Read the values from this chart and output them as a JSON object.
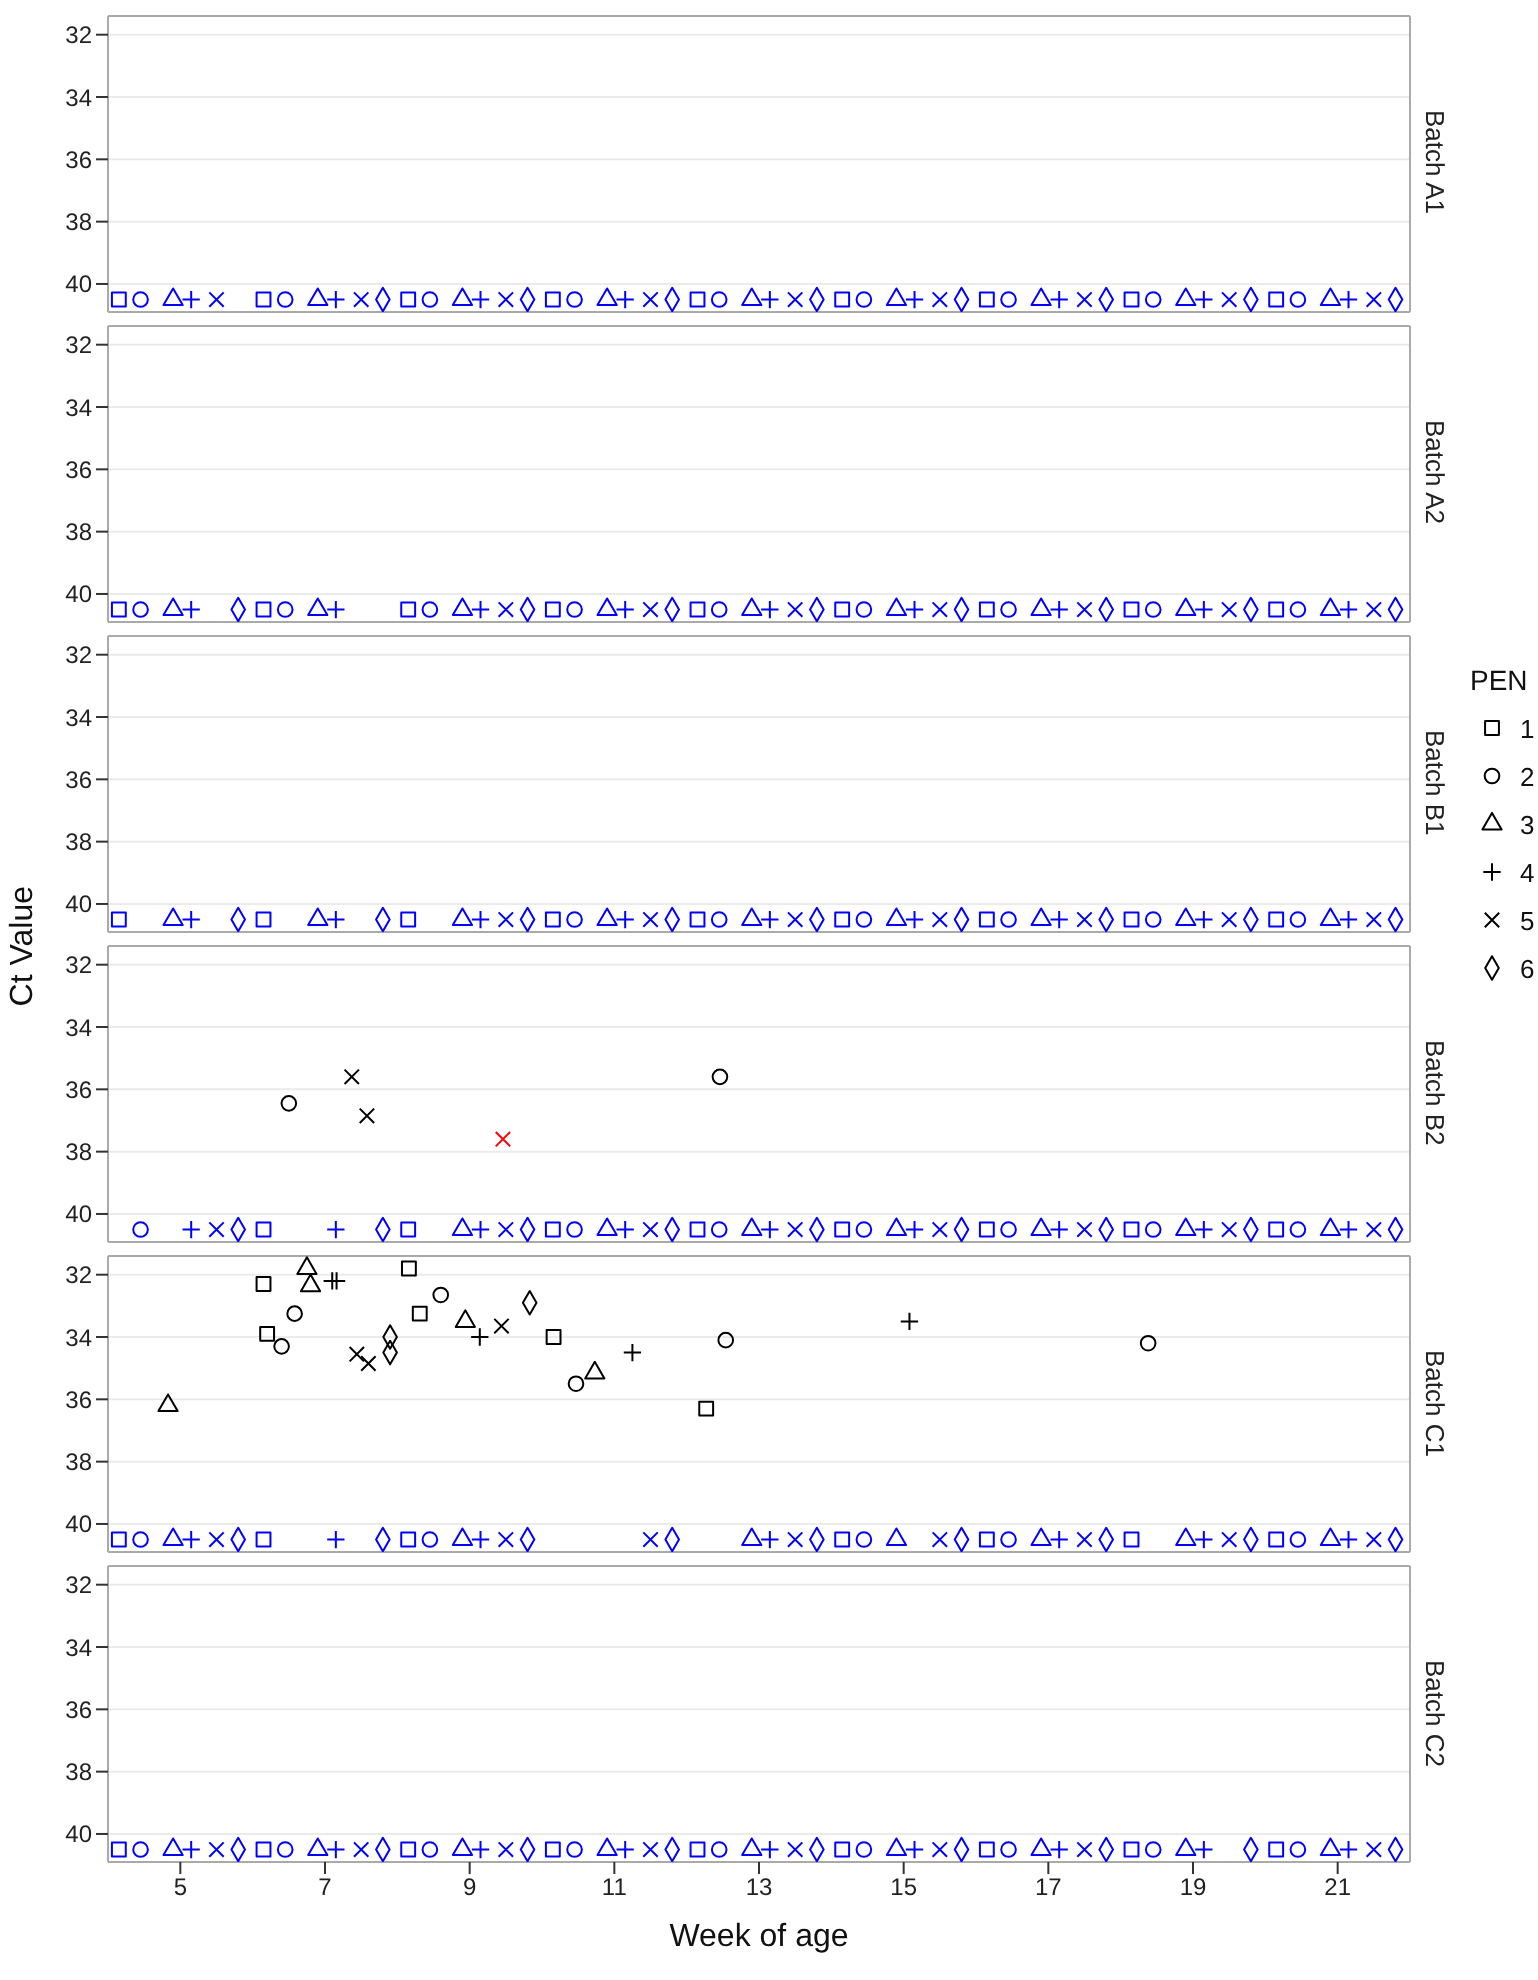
{
  "chart_data": [
    {
      "type": "scatter",
      "title": "Batch A1",
      "xlim": [
        4,
        22
      ],
      "xticks": [
        5,
        7,
        9,
        11,
        13,
        15,
        17,
        19,
        21
      ],
      "ylim": [
        40.9,
        31.4
      ],
      "yticks": [
        32,
        34,
        36,
        38,
        40
      ],
      "grid": "y",
      "tick_labels": "y",
      "series": [
        {
          "marker": "square",
          "color": "#0000ff",
          "x": [
            4.15,
            6.15,
            8.15,
            10.15,
            12.15,
            14.15,
            16.15,
            18.15,
            20.15
          ],
          "values": [
            40.5,
            40.5,
            40.5,
            40.5,
            40.5,
            40.5,
            40.5,
            40.5,
            40.5
          ]
        },
        {
          "marker": "circle",
          "color": "#0000ff",
          "x": [
            4.45,
            6.45,
            8.45,
            10.45,
            12.45,
            14.45,
            16.45,
            18.45,
            20.45
          ],
          "values": [
            40.5,
            40.5,
            40.5,
            40.5,
            40.5,
            40.5,
            40.5,
            40.5,
            40.5
          ]
        },
        {
          "marker": "triangle",
          "color": "#0000ff",
          "x": [
            4.9,
            6.9,
            8.9,
            10.9,
            12.9,
            14.9,
            16.9,
            18.9,
            20.9
          ],
          "values": [
            40.5,
            40.5,
            40.5,
            40.5,
            40.5,
            40.5,
            40.5,
            40.5,
            40.5
          ]
        },
        {
          "marker": "cross",
          "color": "#0000ff",
          "x": [
            5.15,
            7.15,
            9.15,
            11.15,
            13.15,
            15.15,
            17.15,
            19.15,
            21.15
          ],
          "values": [
            40.5,
            40.5,
            40.5,
            40.5,
            40.5,
            40.5,
            40.5,
            40.5,
            40.5
          ]
        },
        {
          "marker": "x",
          "color": "#0000ff",
          "x": [
            5.5,
            7.5,
            9.5,
            11.5,
            13.5,
            15.5,
            17.5,
            19.5,
            21.5
          ],
          "values": [
            40.5,
            40.5,
            40.5,
            40.5,
            40.5,
            40.5,
            40.5,
            40.5,
            40.5
          ]
        },
        {
          "marker": "diamond",
          "color": "#0000ff",
          "x": [
            7.8,
            9.8,
            11.8,
            13.8,
            15.8,
            17.8,
            19.8,
            21.8
          ],
          "values": [
            40.5,
            40.5,
            40.5,
            40.5,
            40.5,
            40.5,
            40.5,
            40.5
          ]
        }
      ]
    },
    {
      "type": "scatter",
      "title": "Batch A2",
      "xlim": [
        4,
        22
      ],
      "xticks": [
        5,
        7,
        9,
        11,
        13,
        15,
        17,
        19,
        21
      ],
      "ylim": [
        40.9,
        31.4
      ],
      "yticks": [
        32,
        34,
        36,
        38,
        40
      ],
      "grid": "y",
      "tick_labels": "y",
      "series": [
        {
          "marker": "square",
          "color": "#0000ff",
          "x": [
            4.15,
            6.15,
            8.15,
            10.15,
            12.15,
            14.15,
            16.15,
            18.15,
            20.15
          ],
          "values": [
            40.5,
            40.5,
            40.5,
            40.5,
            40.5,
            40.5,
            40.5,
            40.5,
            40.5
          ]
        },
        {
          "marker": "circle",
          "color": "#0000ff",
          "x": [
            4.45,
            6.45,
            8.45,
            10.45,
            12.45,
            14.45,
            16.45,
            18.45,
            20.45
          ],
          "values": [
            40.5,
            40.5,
            40.5,
            40.5,
            40.5,
            40.5,
            40.5,
            40.5,
            40.5
          ]
        },
        {
          "marker": "triangle",
          "color": "#0000ff",
          "x": [
            4.9,
            6.9,
            8.9,
            10.9,
            12.9,
            14.9,
            16.9,
            18.9,
            20.9
          ],
          "values": [
            40.5,
            40.5,
            40.5,
            40.5,
            40.5,
            40.5,
            40.5,
            40.5,
            40.5
          ]
        },
        {
          "marker": "cross",
          "color": "#0000ff",
          "x": [
            5.15,
            7.15,
            9.15,
            11.15,
            13.15,
            15.15,
            17.15,
            19.15,
            21.15
          ],
          "values": [
            40.5,
            40.5,
            40.5,
            40.5,
            40.5,
            40.5,
            40.5,
            40.5,
            40.5
          ]
        },
        {
          "marker": "x",
          "color": "#0000ff",
          "x": [
            9.5,
            11.5,
            13.5,
            15.5,
            17.5,
            19.5,
            21.5
          ],
          "values": [
            40.5,
            40.5,
            40.5,
            40.5,
            40.5,
            40.5,
            40.5
          ]
        },
        {
          "marker": "diamond",
          "color": "#0000ff",
          "x": [
            5.8,
            9.8,
            11.8,
            13.8,
            15.8,
            17.8,
            19.8,
            21.8
          ],
          "values": [
            40.5,
            40.5,
            40.5,
            40.5,
            40.5,
            40.5,
            40.5,
            40.5
          ]
        }
      ]
    },
    {
      "type": "scatter",
      "title": "Batch B1",
      "xlim": [
        4,
        22
      ],
      "xticks": [
        5,
        7,
        9,
        11,
        13,
        15,
        17,
        19,
        21
      ],
      "ylim": [
        40.9,
        31.4
      ],
      "yticks": [
        32,
        34,
        36,
        38,
        40
      ],
      "grid": "y",
      "tick_labels": "y",
      "series": [
        {
          "marker": "square",
          "color": "#0000ff",
          "x": [
            4.15,
            6.15,
            8.15,
            10.15,
            12.15,
            14.15,
            16.15,
            18.15,
            20.15
          ],
          "values": [
            40.5,
            40.5,
            40.5,
            40.5,
            40.5,
            40.5,
            40.5,
            40.5,
            40.5
          ]
        },
        {
          "marker": "circle",
          "color": "#0000ff",
          "x": [
            10.45,
            12.45,
            14.45,
            16.45,
            18.45,
            20.45
          ],
          "values": [
            40.5,
            40.5,
            40.5,
            40.5,
            40.5,
            40.5
          ]
        },
        {
          "marker": "triangle",
          "color": "#0000ff",
          "x": [
            4.9,
            6.9,
            8.9,
            10.9,
            12.9,
            14.9,
            16.9,
            18.9,
            20.9
          ],
          "values": [
            40.5,
            40.5,
            40.5,
            40.5,
            40.5,
            40.5,
            40.5,
            40.5,
            40.5
          ]
        },
        {
          "marker": "cross",
          "color": "#0000ff",
          "x": [
            5.15,
            7.15,
            9.15,
            11.15,
            13.15,
            15.15,
            17.15,
            19.15,
            21.15
          ],
          "values": [
            40.5,
            40.5,
            40.5,
            40.5,
            40.5,
            40.5,
            40.5,
            40.5,
            40.5
          ]
        },
        {
          "marker": "x",
          "color": "#0000ff",
          "x": [
            9.5,
            11.5,
            13.5,
            15.5,
            17.5,
            19.5,
            21.5
          ],
          "values": [
            40.5,
            40.5,
            40.5,
            40.5,
            40.5,
            40.5,
            40.5
          ]
        },
        {
          "marker": "diamond",
          "color": "#0000ff",
          "x": [
            5.8,
            7.8,
            9.8,
            11.8,
            13.8,
            15.8,
            17.8,
            19.8,
            21.8
          ],
          "values": [
            40.5,
            40.5,
            40.5,
            40.5,
            40.5,
            40.5,
            40.5,
            40.5,
            40.5
          ]
        }
      ]
    },
    {
      "type": "scatter",
      "title": "Batch B2",
      "ylabel": "Ct Value",
      "xlim": [
        4,
        22
      ],
      "xticks": [
        5,
        7,
        9,
        11,
        13,
        15,
        17,
        19,
        21
      ],
      "ylim": [
        40.9,
        31.4
      ],
      "yticks": [
        32,
        34,
        36,
        38,
        40
      ],
      "grid": "y",
      "tick_labels": "y",
      "series": [
        {
          "marker": "square",
          "color": "#0000ff",
          "x": [
            6.15,
            8.15,
            10.15,
            12.15,
            14.15,
            16.15,
            18.15,
            20.15
          ],
          "values": [
            40.5,
            40.5,
            40.5,
            40.5,
            40.5,
            40.5,
            40.5,
            40.5
          ]
        },
        {
          "marker": "circle",
          "color": "#0000ff",
          "x": [
            4.45,
            6.5,
            10.45,
            12.45,
            12.46,
            14.45,
            16.45,
            18.45,
            20.45
          ],
          "values": [
            40.5,
            36.45,
            40.5,
            40.5,
            35.6,
            40.5,
            40.5,
            40.5,
            40.5
          ],
          "colors": [
            null,
            "#000000",
            null,
            null,
            "#000000",
            null,
            null,
            null,
            null
          ]
        },
        {
          "marker": "triangle",
          "color": "#0000ff",
          "x": [
            8.9,
            10.9,
            12.9,
            14.9,
            16.9,
            18.9,
            20.9
          ],
          "values": [
            40.5,
            40.5,
            40.5,
            40.5,
            40.5,
            40.5,
            40.5
          ]
        },
        {
          "marker": "cross",
          "color": "#0000ff",
          "x": [
            5.15,
            7.15,
            9.15,
            11.15,
            13.15,
            15.15,
            17.15,
            19.15,
            21.15
          ],
          "values": [
            40.5,
            40.5,
            40.5,
            40.5,
            40.5,
            40.5,
            40.5,
            40.5,
            40.5
          ]
        },
        {
          "marker": "x",
          "color": "#0000ff",
          "x": [
            5.5,
            7.37,
            7.58,
            9.46,
            9.5,
            11.5,
            13.5,
            15.5,
            17.5,
            19.5,
            21.5
          ],
          "values": [
            40.5,
            35.6,
            36.85,
            37.6,
            40.5,
            40.5,
            40.5,
            40.5,
            40.5,
            40.5,
            40.5
          ],
          "colors": [
            null,
            "#000000",
            "#000000",
            "#ff0000",
            null,
            null,
            null,
            null,
            null,
            null,
            null
          ]
        },
        {
          "marker": "diamond",
          "color": "#0000ff",
          "x": [
            5.8,
            7.8,
            9.8,
            11.8,
            13.8,
            15.8,
            17.8,
            19.8,
            21.8
          ],
          "values": [
            40.5,
            40.5,
            40.5,
            40.5,
            40.5,
            40.5,
            40.5,
            40.5,
            40.5
          ]
        }
      ]
    },
    {
      "type": "scatter",
      "title": "Batch C1",
      "legend": "right",
      "legend_title": "PEN",
      "xlim": [
        4,
        22
      ],
      "xticks": [
        5,
        7,
        9,
        11,
        13,
        15,
        17,
        19,
        21
      ],
      "ylim": [
        40.9,
        31.4
      ],
      "yticks": [
        32,
        34,
        36,
        38,
        40
      ],
      "grid": "y",
      "tick_labels": "y",
      "series": [
        {
          "name": "1",
          "marker": "square",
          "color": "#000000",
          "x": [
            4.15,
            6.15,
            6.15,
            6.2,
            8.15,
            8.16,
            8.31,
            10.16,
            12.27,
            14.15,
            16.15,
            18.15,
            20.15
          ],
          "values": [
            40.5,
            40.5,
            32.3,
            33.9,
            40.5,
            31.8,
            33.25,
            34.0,
            36.3,
            40.5,
            40.5,
            40.5,
            40.5
          ],
          "colors": [
            "#0000ff",
            "#0000ff",
            null,
            null,
            "#0000ff",
            null,
            null,
            null,
            null,
            "#0000ff",
            "#0000ff",
            "#0000ff",
            "#0000ff"
          ]
        },
        {
          "name": "2",
          "marker": "circle",
          "color": "#000000",
          "x": [
            4.45,
            6.4,
            6.58,
            8.45,
            8.6,
            10.47,
            12.54,
            14.45,
            16.45,
            18.38,
            20.45
          ],
          "values": [
            40.5,
            34.3,
            33.25,
            40.5,
            32.65,
            35.5,
            34.1,
            40.5,
            40.5,
            34.2,
            40.5
          ],
          "colors": [
            "#0000ff",
            null,
            null,
            "#0000ff",
            null,
            null,
            null,
            "#0000ff",
            "#0000ff",
            null,
            "#0000ff"
          ]
        },
        {
          "name": "3",
          "marker": "triangle",
          "color": "#000000",
          "x": [
            4.83,
            4.9,
            6.75,
            6.8,
            8.9,
            8.94,
            10.73,
            12.9,
            14.9,
            16.9,
            18.9,
            20.9
          ],
          "values": [
            36.2,
            40.5,
            31.8,
            32.35,
            40.5,
            33.5,
            35.15,
            40.5,
            40.5,
            40.5,
            40.5,
            40.5
          ],
          "colors": [
            null,
            "#0000ff",
            null,
            null,
            "#0000ff",
            null,
            null,
            "#0000ff",
            "#0000ff",
            "#0000ff",
            "#0000ff",
            "#0000ff"
          ]
        },
        {
          "name": "4",
          "marker": "cross",
          "color": "#000000",
          "x": [
            5.15,
            7.1,
            7.15,
            7.16,
            9.14,
            9.15,
            11.25,
            13.15,
            15.08,
            17.15,
            19.15,
            21.15
          ],
          "values": [
            40.5,
            32.2,
            40.5,
            32.2,
            34.0,
            40.5,
            34.5,
            40.5,
            33.5,
            40.5,
            40.5,
            40.5
          ],
          "colors": [
            "#0000ff",
            null,
            "#0000ff",
            null,
            null,
            "#0000ff",
            null,
            "#0000ff",
            null,
            "#0000ff",
            "#0000ff",
            "#0000ff"
          ]
        },
        {
          "name": "5",
          "marker": "x",
          "color": "#000000",
          "x": [
            5.5,
            7.44,
            7.6,
            9.44,
            9.5,
            11.5,
            13.5,
            15.5,
            17.5,
            19.5,
            21.5
          ],
          "values": [
            40.5,
            34.55,
            34.85,
            33.65,
            40.5,
            40.5,
            40.5,
            40.5,
            40.5,
            40.5,
            40.5
          ],
          "colors": [
            "#0000ff",
            null,
            null,
            null,
            "#0000ff",
            "#0000ff",
            "#0000ff",
            "#0000ff",
            "#0000ff",
            "#0000ff",
            "#0000ff"
          ]
        },
        {
          "name": "6",
          "marker": "diamond",
          "color": "#000000",
          "x": [
            5.8,
            7.8,
            7.9,
            7.9,
            9.8,
            9.83,
            11.8,
            13.8,
            15.8,
            17.8,
            19.8,
            21.8
          ],
          "values": [
            40.5,
            40.5,
            34.0,
            34.5,
            40.5,
            32.9,
            40.5,
            40.5,
            40.5,
            40.5,
            40.5,
            40.5
          ],
          "colors": [
            "#0000ff",
            "#0000ff",
            null,
            null,
            "#0000ff",
            null,
            "#0000ff",
            "#0000ff",
            "#0000ff",
            "#0000ff",
            "#0000ff",
            "#0000ff"
          ]
        }
      ]
    },
    {
      "type": "scatter",
      "title": "Batch C2",
      "xlabel": "Week of age",
      "xlim": [
        4,
        22
      ],
      "xticks": [
        5,
        7,
        9,
        11,
        13,
        15,
        17,
        19,
        21
      ],
      "ylim": [
        40.9,
        31.4
      ],
      "yticks": [
        32,
        34,
        36,
        38,
        40
      ],
      "grid": "y",
      "series": [
        {
          "marker": "square",
          "color": "#0000ff",
          "x": [
            4.15,
            6.15,
            8.15,
            10.15,
            12.15,
            14.15,
            16.15,
            18.15,
            20.15
          ],
          "values": [
            40.5,
            40.5,
            40.5,
            40.5,
            40.5,
            40.5,
            40.5,
            40.5,
            40.5
          ]
        },
        {
          "marker": "circle",
          "color": "#0000ff",
          "x": [
            4.45,
            6.45,
            8.45,
            10.45,
            12.45,
            14.45,
            16.45,
            18.45,
            20.45
          ],
          "values": [
            40.5,
            40.5,
            40.5,
            40.5,
            40.5,
            40.5,
            40.5,
            40.5,
            40.5
          ]
        },
        {
          "marker": "triangle",
          "color": "#0000ff",
          "x": [
            4.9,
            6.9,
            8.9,
            10.9,
            12.9,
            14.9,
            16.9,
            18.9,
            20.9
          ],
          "values": [
            40.5,
            40.5,
            40.5,
            40.5,
            40.5,
            40.5,
            40.5,
            40.5,
            40.5
          ]
        },
        {
          "marker": "cross",
          "color": "#0000ff",
          "x": [
            5.15,
            7.15,
            9.15,
            11.15,
            13.15,
            15.15,
            17.15,
            19.15,
            21.15
          ],
          "values": [
            40.5,
            40.5,
            40.5,
            40.5,
            40.5,
            40.5,
            40.5,
            40.5,
            40.5
          ]
        },
        {
          "marker": "x",
          "color": "#0000ff",
          "x": [
            5.5,
            7.5,
            9.5,
            11.5,
            13.5,
            15.5,
            17.5,
            21.5
          ],
          "values": [
            40.5,
            40.5,
            40.5,
            40.5,
            40.5,
            40.5,
            40.5,
            40.5
          ]
        },
        {
          "marker": "diamond",
          "color": "#0000ff",
          "x": [
            5.8,
            7.8,
            9.8,
            11.8,
            13.8,
            15.8,
            17.8,
            19.8,
            21.8
          ],
          "values": [
            40.5,
            40.5,
            40.5,
            40.5,
            40.5,
            40.5,
            40.5,
            40.5,
            40.5
          ]
        }
      ]
    }
  ]
}
